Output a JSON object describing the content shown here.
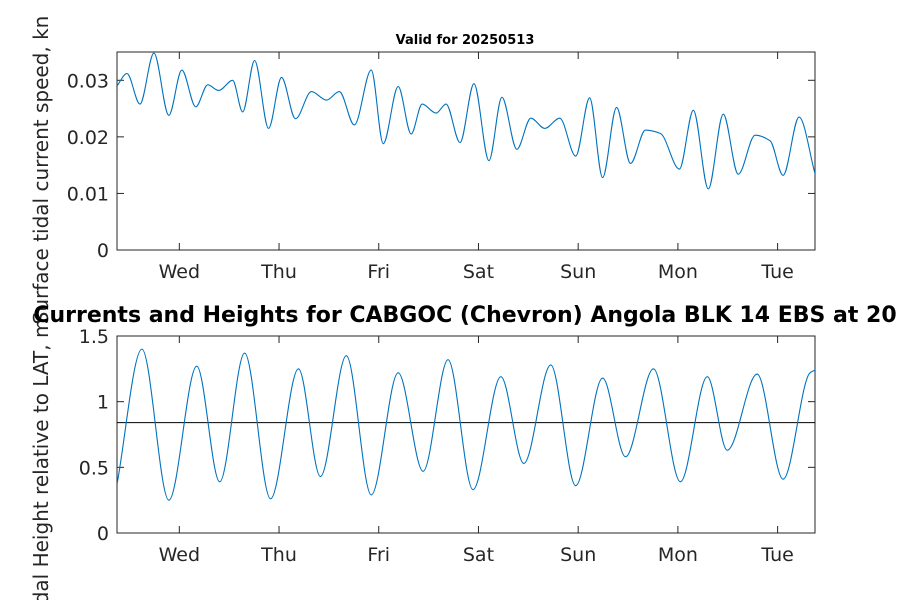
{
  "colors": {
    "series": "#0072BD",
    "ref_line": "#000000",
    "axes": "#262626"
  },
  "chart_data": [
    {
      "type": "line",
      "title": "Valid for 20250513",
      "xlabel": "",
      "ylabel": "Surface tidal current speed, kn",
      "x_unit": "days",
      "xlim": [
        0,
        7
      ],
      "ylim": [
        0,
        0.035
      ],
      "x_ticks": [
        0.625,
        1.625,
        2.625,
        3.625,
        4.625,
        5.625,
        6.625
      ],
      "x_tick_labels": [
        "Wed",
        "Thu",
        "Fri",
        "Sat",
        "Sun",
        "Mon",
        "Tue"
      ],
      "y_ticks": [
        0,
        0.01,
        0.02,
        0.03
      ],
      "y_tick_labels": [
        "0",
        "0.01",
        "0.02",
        "0.03"
      ],
      "grid": false,
      "series": [
        {
          "x": [
            0,
            0.1,
            0.23,
            0.37,
            0.52,
            0.65,
            0.79,
            0.91,
            1.02,
            1.16,
            1.26,
            1.38,
            1.52,
            1.65,
            1.79,
            1.95,
            2.1,
            2.23,
            2.38,
            2.55,
            2.67,
            2.82,
            2.95,
            3.06,
            3.2,
            3.3,
            3.44,
            3.58,
            3.73,
            3.86,
            4.01,
            4.15,
            4.29,
            4.44,
            4.6,
            4.74,
            4.87,
            5.01,
            5.15,
            5.3,
            5.45,
            5.64,
            5.78,
            5.93,
            6.08,
            6.23,
            6.4,
            6.55,
            6.68,
            6.84,
            7.0
          ],
          "y": [
            0.029,
            0.0312,
            0.0258,
            0.0348,
            0.0238,
            0.0318,
            0.0253,
            0.0292,
            0.0282,
            0.03,
            0.0244,
            0.0335,
            0.0215,
            0.0305,
            0.0232,
            0.028,
            0.0265,
            0.028,
            0.0221,
            0.0318,
            0.0188,
            0.0289,
            0.0205,
            0.0258,
            0.0242,
            0.0258,
            0.019,
            0.0294,
            0.0158,
            0.027,
            0.0178,
            0.0233,
            0.0215,
            0.0233,
            0.0166,
            0.0269,
            0.0128,
            0.0252,
            0.0153,
            0.0212,
            0.0206,
            0.0143,
            0.0247,
            0.0108,
            0.024,
            0.0134,
            0.0203,
            0.0193,
            0.0132,
            0.0235,
            0.0135
          ]
        }
      ]
    },
    {
      "type": "line",
      "title": "Currents and Heights for CABGOC (Chevron)  Angola BLK 14  EBS at 20",
      "xlabel": "",
      "ylabel": "Tidal Height relative to LAT, m",
      "x_unit": "days",
      "xlim": [
        0,
        7
      ],
      "ylim": [
        0,
        1.5
      ],
      "x_ticks": [
        0.625,
        1.625,
        2.625,
        3.625,
        4.625,
        5.625,
        6.625
      ],
      "x_tick_labels": [
        "Wed",
        "Thu",
        "Fri",
        "Sat",
        "Sun",
        "Mon",
        "Tue"
      ],
      "y_ticks": [
        0,
        0.5,
        1,
        1.5
      ],
      "y_tick_labels": [
        "0",
        "0.5",
        "1",
        "1.5"
      ],
      "grid": false,
      "reference_line": 0.84,
      "series": [
        {
          "x": [
            0,
            0.25,
            0.52,
            0.8,
            1.03,
            1.28,
            1.54,
            1.82,
            2.04,
            2.3,
            2.55,
            2.82,
            3.07,
            3.32,
            3.57,
            3.85,
            4.08,
            4.35,
            4.6,
            4.87,
            5.1,
            5.38,
            5.65,
            5.92,
            6.12,
            6.42,
            6.68,
            6.95,
            7.0
          ],
          "y": [
            0.37,
            1.4,
            0.25,
            1.27,
            0.39,
            1.37,
            0.26,
            1.25,
            0.43,
            1.35,
            0.29,
            1.22,
            0.47,
            1.32,
            0.33,
            1.19,
            0.53,
            1.28,
            0.36,
            1.18,
            0.58,
            1.25,
            0.39,
            1.19,
            0.63,
            1.21,
            0.41,
            1.22,
            1.24
          ]
        }
      ]
    }
  ]
}
